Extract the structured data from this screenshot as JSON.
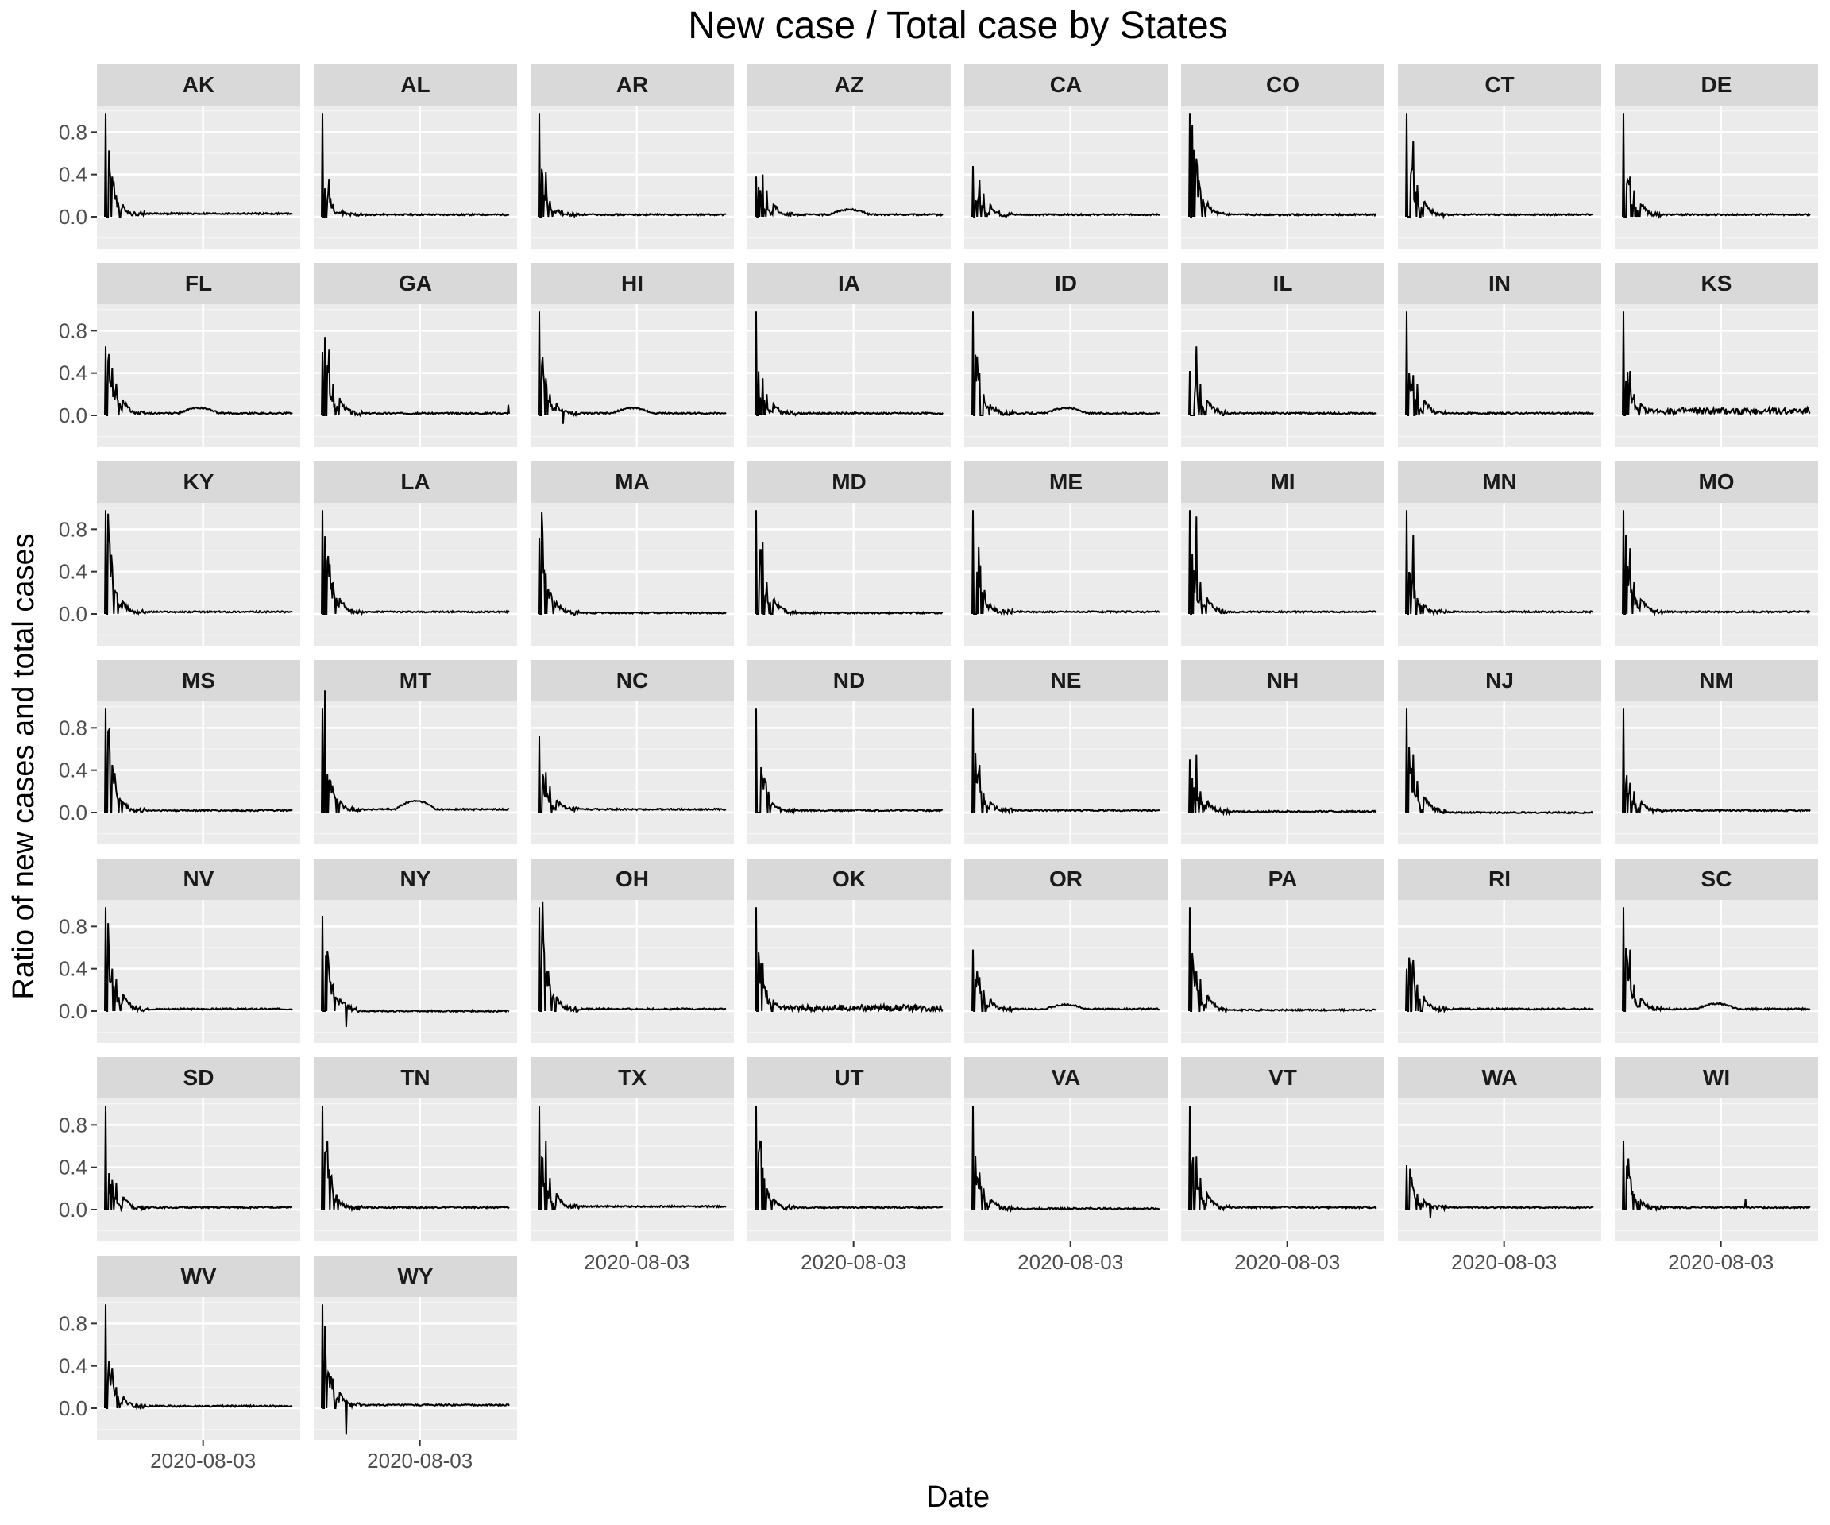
{
  "chart_data": {
    "type": "line",
    "title": "New case / Total case by States",
    "xlabel": "Date",
    "ylabel": "Ratio of new cases and total cases",
    "x_tick_labels": [
      "2020-08-03"
    ],
    "y_tick_labels": [
      "0.0",
      "0.4",
      "0.8"
    ],
    "ylim": [
      -0.3,
      1.05
    ],
    "facet_columns": 8,
    "grid": true,
    "states": [
      {
        "state": "AK",
        "peaks": [
          0.98,
          0.67,
          0.38,
          0.2
        ],
        "tail": 0.03
      },
      {
        "state": "AL",
        "peaks": [
          0.98,
          0.32,
          0.36,
          0.12
        ],
        "tail": 0.02
      },
      {
        "state": "AR",
        "peaks": [
          0.98,
          0.35,
          0.42,
          0.15
        ],
        "tail": 0.02
      },
      {
        "state": "AZ",
        "peaks": [
          0.38,
          0.3,
          0.4,
          0.25
        ],
        "tail": 0.02,
        "bump": 0.05
      },
      {
        "state": "CA",
        "peaks": [
          0.48,
          0.25,
          0.35,
          0.22
        ],
        "tail": 0.02
      },
      {
        "state": "CO",
        "peaks": [
          0.98,
          0.82,
          0.55,
          0.25
        ],
        "tail": 0.02
      },
      {
        "state": "CT",
        "peaks": [
          0.98,
          0.6,
          0.72,
          0.3
        ],
        "tail": 0.02
      },
      {
        "state": "DE",
        "peaks": [
          0.98,
          0.5,
          0.38,
          0.25
        ],
        "tail": 0.02
      },
      {
        "state": "FL",
        "peaks": [
          0.65,
          0.62,
          0.45,
          0.3
        ],
        "tail": 0.02,
        "bump": 0.05
      },
      {
        "state": "GA",
        "peaks": [
          0.6,
          0.58,
          0.62,
          0.3
        ],
        "tail": 0.02,
        "end_spike": 0.1
      },
      {
        "state": "HI",
        "peaks": [
          0.98,
          0.5,
          0.35,
          0.2
        ],
        "tail": 0.02,
        "bump": 0.05,
        "dip": -0.08
      },
      {
        "state": "IA",
        "peaks": [
          0.98,
          0.3,
          0.35,
          0.2
        ],
        "tail": 0.02
      },
      {
        "state": "ID",
        "peaks": [
          0.98,
          0.55,
          0.4,
          0.2
        ],
        "tail": 0.02,
        "bump": 0.05
      },
      {
        "state": "IL",
        "peaks": [
          0.42,
          0.45,
          0.65,
          0.3
        ],
        "tail": 0.02
      },
      {
        "state": "IN",
        "peaks": [
          0.98,
          0.35,
          0.38,
          0.3
        ],
        "tail": 0.02
      },
      {
        "state": "KS",
        "peaks": [
          0.98,
          0.4,
          0.42,
          0.2
        ],
        "tail": 0.04,
        "noisy": true
      },
      {
        "state": "KY",
        "peaks": [
          0.98,
          0.75,
          0.45,
          0.2
        ],
        "tail": 0.02
      },
      {
        "state": "LA",
        "peaks": [
          0.98,
          0.8,
          0.35,
          0.3
        ],
        "tail": 0.02
      },
      {
        "state": "MA",
        "peaks": [
          0.72,
          0.7,
          0.38,
          0.2
        ],
        "tail": 0.01
      },
      {
        "state": "MD",
        "peaks": [
          0.98,
          0.68,
          0.68,
          0.3
        ],
        "tail": 0.01
      },
      {
        "state": "ME",
        "peaks": [
          0.98,
          0.8,
          0.25,
          0.15
        ],
        "tail": 0.02
      },
      {
        "state": "MI",
        "peaks": [
          0.98,
          0.5,
          0.92,
          0.3
        ],
        "tail": 0.02
      },
      {
        "state": "MN",
        "peaks": [
          0.98,
          0.5,
          0.75,
          0.15
        ],
        "tail": 0.02
      },
      {
        "state": "MO",
        "peaks": [
          0.98,
          0.6,
          0.62,
          0.3
        ],
        "tail": 0.02
      },
      {
        "state": "MS",
        "peaks": [
          0.98,
          0.85,
          0.45,
          0.2
        ],
        "tail": 0.02
      },
      {
        "state": "MT",
        "peaks": [
          0.98,
          0.85,
          0.3,
          0.2
        ],
        "tail": 0.03,
        "bump": 0.08
      },
      {
        "state": "NC",
        "peaks": [
          0.72,
          0.35,
          0.38,
          0.25
        ],
        "tail": 0.03
      },
      {
        "state": "ND",
        "peaks": [
          0.98,
          0.8,
          0.3,
          0.15
        ],
        "tail": 0.02
      },
      {
        "state": "NE",
        "peaks": [
          0.98,
          0.5,
          0.45,
          0.18
        ],
        "tail": 0.02
      },
      {
        "state": "NH",
        "peaks": [
          0.5,
          0.42,
          0.55,
          0.2
        ],
        "tail": 0.01
      },
      {
        "state": "NJ",
        "peaks": [
          0.98,
          0.5,
          0.55,
          0.3
        ],
        "tail": 0.0
      },
      {
        "state": "NM",
        "peaks": [
          0.98,
          0.3,
          0.28,
          0.2
        ],
        "tail": 0.02
      },
      {
        "state": "NV",
        "peaks": [
          0.98,
          0.62,
          0.4,
          0.3
        ],
        "tail": 0.02
      },
      {
        "state": "NY",
        "peaks": [
          0.9,
          0.75,
          0.38,
          0.25
        ],
        "tail": 0.0,
        "dip": -0.15
      },
      {
        "state": "OH",
        "peaks": [
          0.98,
          0.95,
          0.35,
          0.25
        ],
        "tail": 0.02
      },
      {
        "state": "OK",
        "peaks": [
          0.98,
          0.5,
          0.45,
          0.2
        ],
        "tail": 0.03,
        "noisy": true
      },
      {
        "state": "OR",
        "peaks": [
          0.58,
          0.4,
          0.32,
          0.2
        ],
        "tail": 0.02,
        "bump": 0.04
      },
      {
        "state": "PA",
        "peaks": [
          0.98,
          0.45,
          0.38,
          0.3
        ],
        "tail": 0.01
      },
      {
        "state": "RI",
        "peaks": [
          0.4,
          0.58,
          0.48,
          0.25
        ],
        "tail": 0.02
      },
      {
        "state": "SC",
        "peaks": [
          0.98,
          0.45,
          0.58,
          0.25
        ],
        "tail": 0.02,
        "bump": 0.05
      },
      {
        "state": "SD",
        "peaks": [
          0.98,
          0.32,
          0.28,
          0.25
        ],
        "tail": 0.02
      },
      {
        "state": "TN",
        "peaks": [
          0.98,
          0.85,
          0.38,
          0.15
        ],
        "tail": 0.02
      },
      {
        "state": "TX",
        "peaks": [
          0.98,
          0.45,
          0.65,
          0.3
        ],
        "tail": 0.03
      },
      {
        "state": "UT",
        "peaks": [
          0.98,
          0.72,
          0.4,
          0.2
        ],
        "tail": 0.02
      },
      {
        "state": "VA",
        "peaks": [
          0.98,
          0.42,
          0.35,
          0.2
        ],
        "tail": 0.01
      },
      {
        "state": "VT",
        "peaks": [
          0.98,
          0.5,
          0.5,
          0.3
        ],
        "tail": 0.02
      },
      {
        "state": "WA",
        "peaks": [
          0.42,
          0.35,
          0.2,
          0.15
        ],
        "tail": 0.02,
        "dip": -0.08
      },
      {
        "state": "WI",
        "peaks": [
          0.65,
          0.55,
          0.3,
          0.15
        ],
        "tail": 0.02,
        "spike": 0.1
      },
      {
        "state": "WV",
        "peaks": [
          0.98,
          0.5,
          0.38,
          0.2
        ],
        "tail": 0.02
      },
      {
        "state": "WY",
        "peaks": [
          0.98,
          0.72,
          0.32,
          0.28
        ],
        "tail": 0.03,
        "dip": -0.25
      }
    ]
  }
}
